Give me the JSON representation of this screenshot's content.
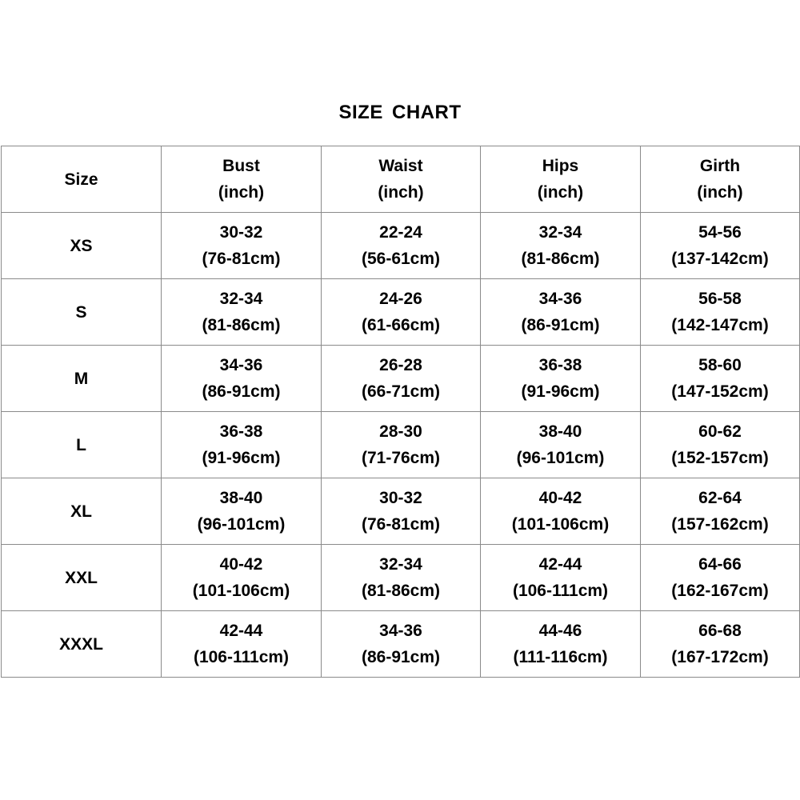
{
  "title": "SIZE  CHART",
  "header": {
    "size": "Size",
    "columns": [
      {
        "name": "Bust",
        "unit": "(inch)"
      },
      {
        "name": "Waist",
        "unit": "(inch)"
      },
      {
        "name": "Hips",
        "unit": "(inch)"
      },
      {
        "name": "Girth",
        "unit": "(inch)"
      }
    ]
  },
  "rows": [
    {
      "size": "XS",
      "cells": [
        [
          "30-32",
          "(76-81cm)"
        ],
        [
          "22-24",
          "(56-61cm)"
        ],
        [
          "32-34",
          "(81-86cm)"
        ],
        [
          "54-56",
          "(137-142cm)"
        ]
      ]
    },
    {
      "size": "S",
      "cells": [
        [
          "32-34",
          "(81-86cm)"
        ],
        [
          "24-26",
          "(61-66cm)"
        ],
        [
          "34-36",
          "(86-91cm)"
        ],
        [
          "56-58",
          "(142-147cm)"
        ]
      ]
    },
    {
      "size": "M",
      "cells": [
        [
          "34-36",
          "(86-91cm)"
        ],
        [
          "26-28",
          "(66-71cm)"
        ],
        [
          "36-38",
          "(91-96cm)"
        ],
        [
          "58-60",
          "(147-152cm)"
        ]
      ]
    },
    {
      "size": "L",
      "cells": [
        [
          "36-38",
          "(91-96cm)"
        ],
        [
          "28-30",
          "(71-76cm)"
        ],
        [
          "38-40",
          "(96-101cm)"
        ],
        [
          "60-62",
          "(152-157cm)"
        ]
      ]
    },
    {
      "size": "XL",
      "cells": [
        [
          "38-40",
          "(96-101cm)"
        ],
        [
          "30-32",
          "(76-81cm)"
        ],
        [
          "40-42",
          "(101-106cm)"
        ],
        [
          "62-64",
          "(157-162cm)"
        ]
      ]
    },
    {
      "size": "XXL",
      "cells": [
        [
          "40-42",
          "(101-106cm)"
        ],
        [
          "32-34",
          "(81-86cm)"
        ],
        [
          "42-44",
          "(106-111cm)"
        ],
        [
          "64-66",
          "(162-167cm)"
        ]
      ]
    },
    {
      "size": "XXXL",
      "cells": [
        [
          "42-44",
          "(106-111cm)"
        ],
        [
          "34-36",
          "(86-91cm)"
        ],
        [
          "44-46",
          "(111-116cm)"
        ],
        [
          "66-68",
          "(167-172cm)"
        ]
      ]
    }
  ]
}
